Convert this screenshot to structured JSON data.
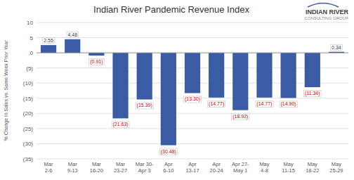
{
  "chart_data": {
    "type": "bar",
    "title": "Indian River Pandemic Revenue Index",
    "ylabel": "% Change in Sales vs. Same Week Prior Year",
    "categories": [
      "Mar\n2-6",
      "Mar\n9-13",
      "Mar\n16-20",
      "Mar\n23-27",
      "Mar 30-\nApr 3",
      "Apr\n6-10",
      "Apr\n13-17",
      "Apr\n20-24",
      "Apr 27-\nMay 1",
      "May\n4-8",
      "May\n11-15",
      "May\n18-22",
      "May\n25-29"
    ],
    "values": [
      2.55,
      4.48,
      -0.91,
      -21.63,
      -15.39,
      -30.48,
      -13.3,
      -14.77,
      -18.92,
      -14.77,
      -14.9,
      -11.34,
      0.34
    ],
    "value_labels": [
      "2.55",
      "4.48",
      "(0.91)",
      "(21.63)",
      "(15.39)",
      "(30.48)",
      "(13.30)",
      "(14.77)",
      "(18.92)",
      "(14.77)",
      "(14.90)",
      "(11.34)",
      "0.34"
    ],
    "data_labels": true,
    "color": "#3B5BA5",
    "ylim": [
      -35,
      10
    ],
    "yticks": [
      10,
      5,
      0,
      {
        "value": -5,
        "label": "(5)"
      },
      {
        "value": -10,
        "label": "(10)"
      },
      {
        "value": -15,
        "label": "(15)"
      },
      {
        "value": -20,
        "label": "(20)"
      },
      {
        "value": -25,
        "label": "(25)"
      },
      {
        "value": -30,
        "label": "(30)"
      },
      {
        "value": -35,
        "label": "(35)"
      }
    ],
    "grid": true,
    "annotations": [
      "INDIAN RIVER",
      "CONSULTING GROUP"
    ]
  }
}
